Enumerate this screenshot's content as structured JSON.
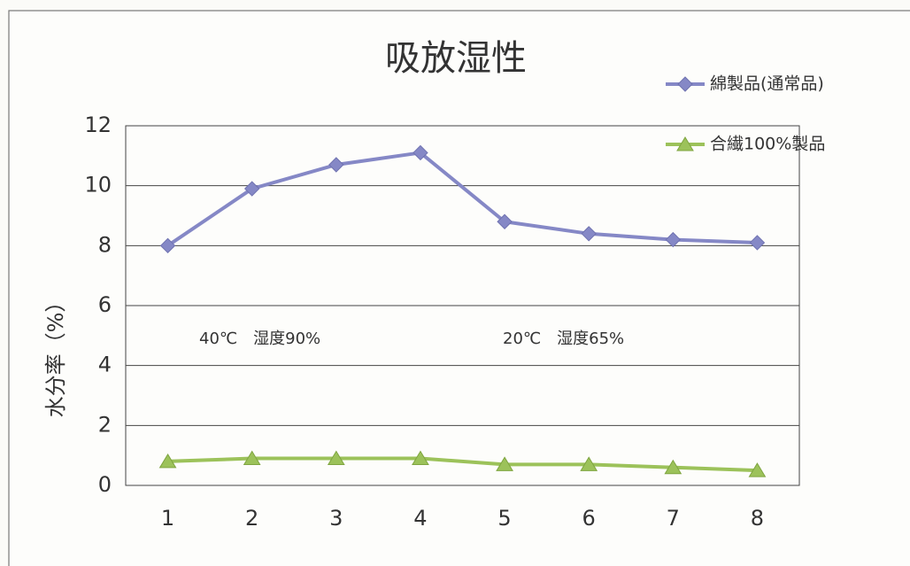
{
  "chart_data": {
    "type": "line",
    "title": "吸放湿性",
    "y_label": "水分率（%）",
    "categories": [
      "1",
      "2",
      "3",
      "4",
      "5",
      "6",
      "7",
      "8"
    ],
    "series": [
      {
        "name": "綿製品(通常品)",
        "color": "#8588c6",
        "marker": "diamond",
        "values": [
          8.0,
          9.9,
          10.7,
          11.1,
          8.8,
          8.4,
          8.2,
          8.1
        ]
      },
      {
        "name": "合繊100%製品",
        "color": "#9cc25a",
        "marker": "triangle",
        "values": [
          0.8,
          0.9,
          0.9,
          0.9,
          0.7,
          0.7,
          0.6,
          0.5
        ]
      }
    ],
    "annotations": [
      "40℃　湿度90%",
      "20℃　湿度65%"
    ],
    "ylim": [
      0,
      12
    ],
    "yticks": [
      0,
      2,
      4,
      6,
      8,
      10,
      12
    ],
    "grid": true,
    "legend": "upper right"
  }
}
